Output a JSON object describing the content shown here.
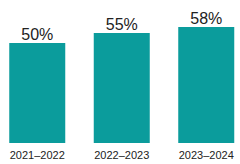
{
  "chart_data": {
    "type": "bar",
    "categories": [
      "2021–2022",
      "2022–2023",
      "2023–2024"
    ],
    "values": [
      50,
      55,
      58
    ],
    "value_labels": [
      "50%",
      "55%",
      "58%"
    ],
    "color": "#0b9c9c",
    "ylim": [
      0,
      70
    ],
    "data_labels": true,
    "tick_labels": "x",
    "grid": false
  }
}
